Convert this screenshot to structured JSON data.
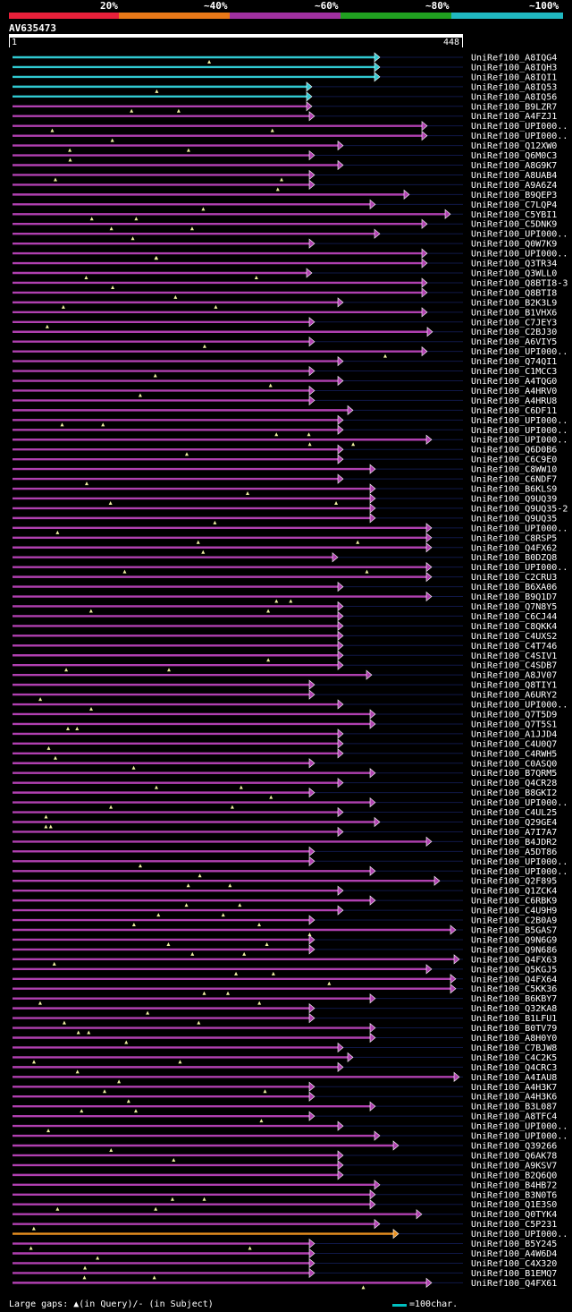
{
  "scale": {
    "labels": [
      "20%",
      "~40%",
      "~60%",
      "~80%",
      "~100%"
    ],
    "colors": [
      "#e8203a",
      "#e87818",
      "#a030a0",
      "#20a020",
      "#20b8c0"
    ]
  },
  "query": {
    "name": "AV635473",
    "start": "1",
    "end": "448"
  },
  "legend": {
    "gaps": "Large gaps: ▲(in Query)/- (in Subject)",
    "scale": "=100char."
  },
  "colors": {
    "cyan": "#30c8d0",
    "magenta": "#b040b0",
    "orange": "#e89020",
    "track": "#101848",
    "gap": "#f0f0a0"
  },
  "hits": [
    {
      "label": "UniRef100_A8IQG4",
      "end": 425,
      "color": "cyan"
    },
    {
      "label": "UniRef100_A8IQH3",
      "end": 425,
      "color": "cyan"
    },
    {
      "label": "UniRef100_A8IQI1",
      "end": 425,
      "color": "cyan"
    },
    {
      "label": "UniRef100_A8IQ53",
      "end": 349,
      "color": "cyan"
    },
    {
      "label": "UniRef100_A8IQ56",
      "end": 349,
      "color": "cyan"
    },
    {
      "label": "UniRef100_B9LZR7",
      "end": 349,
      "color": "magenta"
    },
    {
      "label": "UniRef100_A4FZJ1",
      "end": 352,
      "color": "magenta"
    },
    {
      "label": "UniRef100_UPI000..",
      "end": 478,
      "color": "magenta"
    },
    {
      "label": "UniRef100_UPI000..",
      "end": 478,
      "color": "magenta"
    },
    {
      "label": "UniRef100_Q12XW0",
      "end": 384,
      "color": "magenta"
    },
    {
      "label": "UniRef100_Q6M0C3",
      "end": 352,
      "color": "magenta"
    },
    {
      "label": "UniRef100_A8G9K7",
      "end": 384,
      "color": "magenta"
    },
    {
      "label": "UniRef100_A8UAB4",
      "end": 352,
      "color": "magenta"
    },
    {
      "label": "UniRef100_A9A6Z4",
      "end": 352,
      "color": "magenta"
    },
    {
      "label": "UniRef100_B9QEP3",
      "end": 458,
      "color": "magenta"
    },
    {
      "label": "UniRef100_C7LQP4",
      "end": 420,
      "color": "magenta"
    },
    {
      "label": "UniRef100_C5YBI1",
      "end": 504,
      "color": "magenta"
    },
    {
      "label": "UniRef100_C5DNK9",
      "end": 478,
      "color": "magenta"
    },
    {
      "label": "UniRef100_UPI000..",
      "end": 425,
      "color": "magenta"
    },
    {
      "label": "UniRef100_Q0W7K9",
      "end": 352,
      "color": "magenta"
    },
    {
      "label": "UniRef100_UPI000..",
      "end": 478,
      "color": "magenta"
    },
    {
      "label": "UniRef100_Q3TR34",
      "end": 478,
      "color": "magenta"
    },
    {
      "label": "UniRef100_Q3WLL0",
      "end": 349,
      "color": "magenta"
    },
    {
      "label": "UniRef100_Q8BTI8-3",
      "end": 478,
      "color": "magenta"
    },
    {
      "label": "UniRef100_Q8BTI8",
      "end": 478,
      "color": "magenta"
    },
    {
      "label": "UniRef100_B2K3L9",
      "end": 384,
      "color": "magenta"
    },
    {
      "label": "UniRef100_B1VHX6",
      "end": 478,
      "color": "magenta"
    },
    {
      "label": "UniRef100_C7JEY3",
      "end": 352,
      "color": "magenta"
    },
    {
      "label": "UniRef100_C2BJ30",
      "end": 484,
      "color": "magenta"
    },
    {
      "label": "UniRef100_A6VIY5",
      "end": 352,
      "color": "magenta"
    },
    {
      "label": "UniRef100_UPI000..",
      "end": 478,
      "color": "magenta"
    },
    {
      "label": "UniRef100_Q74QI1",
      "end": 384,
      "color": "magenta"
    },
    {
      "label": "UniRef100_C1MCC3",
      "end": 352,
      "color": "magenta"
    },
    {
      "label": "UniRef100_A4TQG0",
      "end": 384,
      "color": "magenta"
    },
    {
      "label": "UniRef100_A4HRV0",
      "end": 352,
      "color": "magenta"
    },
    {
      "label": "UniRef100_A4HRU8",
      "end": 352,
      "color": "magenta"
    },
    {
      "label": "UniRef100_C6DF11",
      "end": 395,
      "color": "magenta"
    },
    {
      "label": "UniRef100_UPI000..",
      "end": 384,
      "color": "magenta"
    },
    {
      "label": "UniRef100_UPI000..",
      "end": 384,
      "color": "magenta"
    },
    {
      "label": "UniRef100_UPI000..",
      "end": 483,
      "color": "magenta"
    },
    {
      "label": "UniRef100_Q6D0B6",
      "end": 384,
      "color": "magenta"
    },
    {
      "label": "UniRef100_C6C9E0",
      "end": 384,
      "color": "magenta"
    },
    {
      "label": "UniRef100_C8WW10",
      "end": 420,
      "color": "magenta"
    },
    {
      "label": "UniRef100_C6NDF7",
      "end": 384,
      "color": "magenta"
    },
    {
      "label": "UniRef100_B6KLS9",
      "end": 420,
      "color": "magenta"
    },
    {
      "label": "UniRef100_Q9UQ39",
      "end": 420,
      "color": "magenta"
    },
    {
      "label": "UniRef100_Q9UQ35-2",
      "end": 420,
      "color": "magenta"
    },
    {
      "label": "UniRef100_Q9UQ35",
      "end": 420,
      "color": "magenta"
    },
    {
      "label": "UniRef100_UPI000..",
      "end": 483,
      "color": "magenta"
    },
    {
      "label": "UniRef100_C8RSP5",
      "end": 483,
      "color": "magenta"
    },
    {
      "label": "UniRef100_Q4FX62",
      "end": 483,
      "color": "magenta"
    },
    {
      "label": "UniRef100_B0DZQ8",
      "end": 378,
      "color": "magenta"
    },
    {
      "label": "UniRef100_UPI000..",
      "end": 483,
      "color": "magenta"
    },
    {
      "label": "UniRef100_C2CRU3",
      "end": 483,
      "color": "magenta"
    },
    {
      "label": "UniRef100_B6XA06",
      "end": 384,
      "color": "magenta"
    },
    {
      "label": "UniRef100_B9Q1D7",
      "end": 483,
      "color": "magenta"
    },
    {
      "label": "UniRef100_Q7N8Y5",
      "end": 384,
      "color": "magenta"
    },
    {
      "label": "UniRef100_C6CJ44",
      "end": 384,
      "color": "magenta"
    },
    {
      "label": "UniRef100_C8QKK4",
      "end": 384,
      "color": "magenta"
    },
    {
      "label": "UniRef100_C4UXS2",
      "end": 384,
      "color": "magenta"
    },
    {
      "label": "UniRef100_C4T746",
      "end": 384,
      "color": "magenta"
    },
    {
      "label": "UniRef100_C4SIV1",
      "end": 384,
      "color": "magenta"
    },
    {
      "label": "UniRef100_C4SDB7",
      "end": 384,
      "color": "magenta"
    },
    {
      "label": "UniRef100_A8JV07",
      "end": 416,
      "color": "magenta"
    },
    {
      "label": "UniRef100_Q8TIY1",
      "end": 352,
      "color": "magenta"
    },
    {
      "label": "UniRef100_A6URY2",
      "end": 352,
      "color": "magenta"
    },
    {
      "label": "UniRef100_UPI000..",
      "end": 384,
      "color": "magenta"
    },
    {
      "label": "UniRef100_Q7T5D9",
      "end": 420,
      "color": "magenta"
    },
    {
      "label": "UniRef100_Q7T5S1",
      "end": 420,
      "color": "magenta"
    },
    {
      "label": "UniRef100_A1JJD4",
      "end": 384,
      "color": "magenta"
    },
    {
      "label": "UniRef100_C4U0Q7",
      "end": 384,
      "color": "magenta"
    },
    {
      "label": "UniRef100_C4RWH5",
      "end": 384,
      "color": "magenta"
    },
    {
      "label": "UniRef100_C0ASQ0",
      "end": 352,
      "color": "magenta"
    },
    {
      "label": "UniRef100_B7QRM5",
      "end": 420,
      "color": "magenta"
    },
    {
      "label": "UniRef100_Q4CR28",
      "end": 384,
      "color": "magenta"
    },
    {
      "label": "UniRef100_B8GKI2",
      "end": 352,
      "color": "magenta"
    },
    {
      "label": "UniRef100_UPI000..",
      "end": 420,
      "color": "magenta"
    },
    {
      "label": "UniRef100_C4UL25",
      "end": 384,
      "color": "magenta"
    },
    {
      "label": "UniRef100_Q29GE4",
      "end": 425,
      "color": "magenta"
    },
    {
      "label": "UniRef100_A7I7A7",
      "end": 384,
      "color": "magenta"
    },
    {
      "label": "UniRef100_B4JDR2",
      "end": 483,
      "color": "magenta"
    },
    {
      "label": "UniRef100_A5DT86",
      "end": 352,
      "color": "magenta"
    },
    {
      "label": "UniRef100_UPI000..",
      "end": 352,
      "color": "magenta"
    },
    {
      "label": "UniRef100_UPI000..",
      "end": 420,
      "color": "magenta"
    },
    {
      "label": "UniRef100_Q2F895",
      "end": 492,
      "color": "magenta"
    },
    {
      "label": "UniRef100_Q1ZCK4",
      "end": 384,
      "color": "magenta"
    },
    {
      "label": "UniRef100_C6RBK9",
      "end": 420,
      "color": "magenta"
    },
    {
      "label": "UniRef100_C4U9H9",
      "end": 384,
      "color": "magenta"
    },
    {
      "label": "UniRef100_C2B0A9",
      "end": 352,
      "color": "magenta"
    },
    {
      "label": "UniRef100_B5GAS7",
      "end": 510,
      "color": "magenta"
    },
    {
      "label": "UniRef100_Q9N6G9",
      "end": 352,
      "color": "magenta"
    },
    {
      "label": "UniRef100_Q9N686",
      "end": 352,
      "color": "magenta"
    },
    {
      "label": "UniRef100_Q4FX63",
      "end": 514,
      "color": "magenta"
    },
    {
      "label": "UniRef100_Q5KGJ5",
      "end": 483,
      "color": "magenta"
    },
    {
      "label": "UniRef100_Q4FX64",
      "end": 510,
      "color": "magenta"
    },
    {
      "label": "UniRef100_C5KK36",
      "end": 510,
      "color": "magenta"
    },
    {
      "label": "UniRef100_B6KBY7",
      "end": 420,
      "color": "magenta"
    },
    {
      "label": "UniRef100_Q32KA8",
      "end": 352,
      "color": "magenta"
    },
    {
      "label": "UniRef100_B1LFU1",
      "end": 352,
      "color": "magenta"
    },
    {
      "label": "UniRef100_B0TV79",
      "end": 420,
      "color": "magenta"
    },
    {
      "label": "UniRef100_A8H0Y0",
      "end": 420,
      "color": "magenta"
    },
    {
      "label": "UniRef100_C7BJW8",
      "end": 384,
      "color": "magenta"
    },
    {
      "label": "UniRef100_C4C2K5",
      "end": 395,
      "color": "magenta"
    },
    {
      "label": "UniRef100_Q4CRC3",
      "end": 384,
      "color": "magenta"
    },
    {
      "label": "UniRef100_A4IAU8",
      "end": 514,
      "color": "magenta"
    },
    {
      "label": "UniRef100_A4H3K7",
      "end": 352,
      "color": "magenta"
    },
    {
      "label": "UniRef100_A4H3K6",
      "end": 352,
      "color": "magenta"
    },
    {
      "label": "UniRef100_B3L087",
      "end": 420,
      "color": "magenta"
    },
    {
      "label": "UniRef100_A8TFC4",
      "end": 352,
      "color": "magenta"
    },
    {
      "label": "UniRef100_UPI000..",
      "end": 384,
      "color": "magenta"
    },
    {
      "label": "UniRef100_UPI000..",
      "end": 425,
      "color": "magenta"
    },
    {
      "label": "UniRef100_Q39266",
      "end": 446,
      "color": "magenta"
    },
    {
      "label": "UniRef100_Q6AK78",
      "end": 384,
      "color": "magenta"
    },
    {
      "label": "UniRef100_A9KSV7",
      "end": 384,
      "color": "magenta"
    },
    {
      "label": "UniRef100_B2Q6Q0",
      "end": 384,
      "color": "magenta"
    },
    {
      "label": "UniRef100_B4HB72",
      "end": 425,
      "color": "magenta"
    },
    {
      "label": "UniRef100_B3N0T6",
      "end": 420,
      "color": "magenta"
    },
    {
      "label": "UniRef100_Q1E3S0",
      "end": 420,
      "color": "magenta"
    },
    {
      "label": "UniRef100_Q0TYK4",
      "end": 472,
      "color": "magenta"
    },
    {
      "label": "UniRef100_C5P231",
      "end": 425,
      "color": "magenta"
    },
    {
      "label": "UniRef100_UPI000..",
      "end": 446,
      "color": "orange"
    },
    {
      "label": "UniRef100_B5Y245",
      "end": 352,
      "color": "magenta"
    },
    {
      "label": "UniRef100_A4W6D4",
      "end": 352,
      "color": "magenta"
    },
    {
      "label": "UniRef100_C4X320",
      "end": 352,
      "color": "magenta"
    },
    {
      "label": "UniRef100_B1EMQ7",
      "end": 352,
      "color": "magenta"
    },
    {
      "label": "UniRef100_Q4FX61",
      "end": 483,
      "color": "magenta"
    }
  ]
}
